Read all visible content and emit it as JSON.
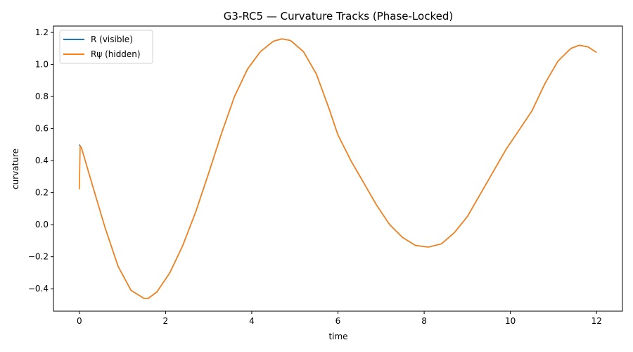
{
  "chart_data": {
    "type": "line",
    "title": "G3-RC5 — Curvature Tracks (Phase-Locked)",
    "xlabel": "time",
    "ylabel": "curvature",
    "xlim": [
      -0.6,
      12.6
    ],
    "ylim": [
      -0.54,
      1.24
    ],
    "x_ticks": [
      0,
      2,
      4,
      6,
      8,
      10,
      12
    ],
    "x_tick_labels": [
      "0",
      "2",
      "4",
      "6",
      "8",
      "10",
      "12"
    ],
    "y_ticks": [
      -0.4,
      -0.2,
      0.0,
      0.2,
      0.4,
      0.6,
      0.8,
      1.0,
      1.2
    ],
    "y_tick_labels": [
      "−0.4",
      "−0.2",
      "0.0",
      "0.2",
      "0.4",
      "0.6",
      "0.8",
      "1.0",
      "1.2"
    ],
    "grid": false,
    "legend_position": "top-left",
    "series": [
      {
        "name": "R (visible)",
        "color": "#1f77b4",
        "x": [
          0,
          0.05,
          0.3,
          0.6,
          0.9,
          1.2,
          1.5,
          1.6,
          1.8,
          2.1,
          2.4,
          2.7,
          3.0,
          3.3,
          3.6,
          3.9,
          4.2,
          4.5,
          4.7,
          4.9,
          5.2,
          5.5,
          5.8,
          6.0,
          6.3,
          6.6,
          6.9,
          7.2,
          7.5,
          7.8,
          8.1,
          8.4,
          8.7,
          9.0,
          9.3,
          9.6,
          9.9,
          10.2,
          10.5,
          10.8,
          11.1,
          11.4,
          11.6,
          11.8,
          12.0
        ],
        "y": [
          0.5,
          0.48,
          0.25,
          -0.02,
          -0.26,
          -0.41,
          -0.46,
          -0.46,
          -0.42,
          -0.3,
          -0.13,
          0.08,
          0.32,
          0.57,
          0.8,
          0.97,
          1.08,
          1.145,
          1.16,
          1.15,
          1.08,
          0.94,
          0.72,
          0.56,
          0.4,
          0.26,
          0.12,
          0.0,
          -0.08,
          -0.13,
          -0.14,
          -0.12,
          -0.05,
          0.05,
          0.19,
          0.33,
          0.47,
          0.59,
          0.71,
          0.88,
          1.02,
          1.1,
          1.12,
          1.11,
          1.075
        ]
      },
      {
        "name": "Rψ (hidden)",
        "color": "#ff7f0e",
        "x": [
          0,
          0.02,
          0.05,
          0.3,
          0.6,
          0.9,
          1.2,
          1.5,
          1.6,
          1.8,
          2.1,
          2.4,
          2.7,
          3.0,
          3.3,
          3.6,
          3.9,
          4.2,
          4.5,
          4.7,
          4.9,
          5.2,
          5.5,
          5.8,
          6.0,
          6.3,
          6.6,
          6.9,
          7.2,
          7.5,
          7.8,
          8.1,
          8.4,
          8.7,
          9.0,
          9.3,
          9.6,
          9.9,
          10.2,
          10.5,
          10.8,
          11.1,
          11.4,
          11.6,
          11.8,
          12.0
        ],
        "y": [
          0.22,
          0.49,
          0.48,
          0.25,
          -0.02,
          -0.26,
          -0.41,
          -0.46,
          -0.46,
          -0.42,
          -0.3,
          -0.13,
          0.08,
          0.32,
          0.57,
          0.8,
          0.97,
          1.08,
          1.145,
          1.16,
          1.15,
          1.08,
          0.94,
          0.72,
          0.56,
          0.4,
          0.26,
          0.12,
          0.0,
          -0.08,
          -0.13,
          -0.14,
          -0.12,
          -0.05,
          0.05,
          0.19,
          0.33,
          0.47,
          0.59,
          0.71,
          0.88,
          1.02,
          1.1,
          1.12,
          1.11,
          1.075
        ]
      }
    ]
  }
}
